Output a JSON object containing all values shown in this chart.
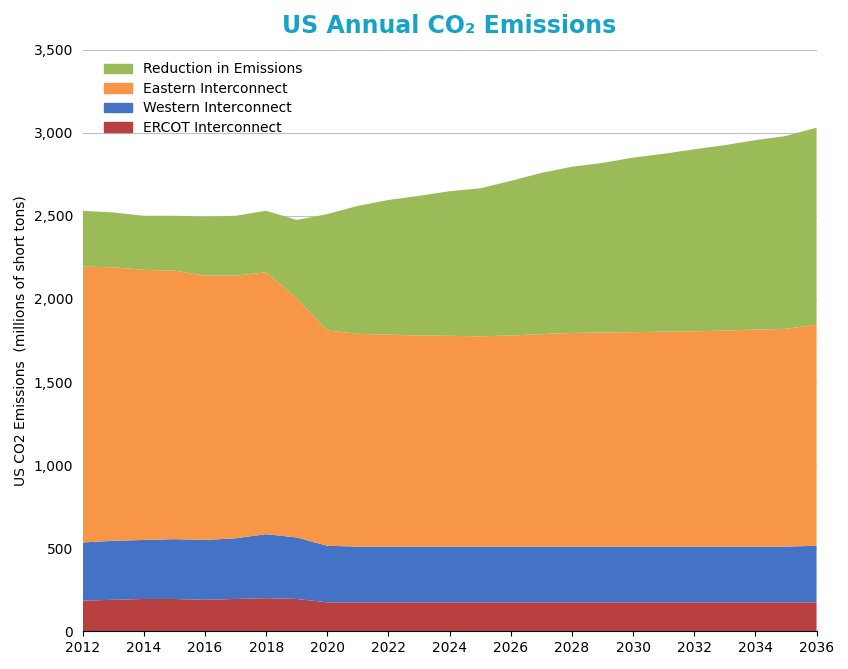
{
  "title": "US Annual CO₂ Emissions",
  "ylabel": "US CO2 Emissions  (millions of short tons)",
  "years": [
    2012,
    2013,
    2014,
    2015,
    2016,
    2017,
    2018,
    2019,
    2020,
    2021,
    2022,
    2023,
    2024,
    2025,
    2026,
    2027,
    2028,
    2029,
    2030,
    2031,
    2032,
    2033,
    2034,
    2035,
    2036
  ],
  "ercot": [
    185,
    190,
    195,
    195,
    190,
    195,
    200,
    195,
    175,
    175,
    175,
    175,
    175,
    175,
    175,
    175,
    175,
    175,
    175,
    175,
    175,
    175,
    175,
    175,
    175
  ],
  "western": [
    350,
    355,
    355,
    360,
    360,
    365,
    385,
    370,
    340,
    335,
    335,
    335,
    335,
    335,
    335,
    335,
    335,
    335,
    335,
    335,
    335,
    335,
    335,
    335,
    340
  ],
  "eastern": [
    1660,
    1645,
    1625,
    1615,
    1590,
    1580,
    1575,
    1440,
    1295,
    1280,
    1275,
    1270,
    1268,
    1265,
    1270,
    1278,
    1285,
    1288,
    1290,
    1293,
    1295,
    1300,
    1305,
    1310,
    1330
  ],
  "reduction": [
    335,
    330,
    325,
    330,
    355,
    360,
    370,
    470,
    700,
    770,
    810,
    840,
    870,
    890,
    930,
    970,
    1000,
    1020,
    1050,
    1070,
    1095,
    1115,
    1140,
    1160,
    1185
  ],
  "colors": {
    "ercot": "#b94040",
    "western": "#4472c4",
    "eastern": "#f79646",
    "reduction": "#9bbb59"
  },
  "legend_labels": [
    "Reduction in Emissions",
    "Eastern Interconnect",
    "Western Interconnect",
    "ERCOT Interconnect"
  ],
  "ylim": [
    0,
    3500
  ],
  "yticks": [
    0,
    500,
    1000,
    1500,
    2000,
    2500,
    3000,
    3500
  ],
  "ytick_labels": [
    "0",
    "500",
    "1,000",
    "1,500",
    "2,000",
    "2,500",
    "3,000",
    "3,500"
  ],
  "title_color": "#17a3c8",
  "title_fontsize": 17,
  "background_color": "#ffffff",
  "grid_color": "#c0c0c0"
}
